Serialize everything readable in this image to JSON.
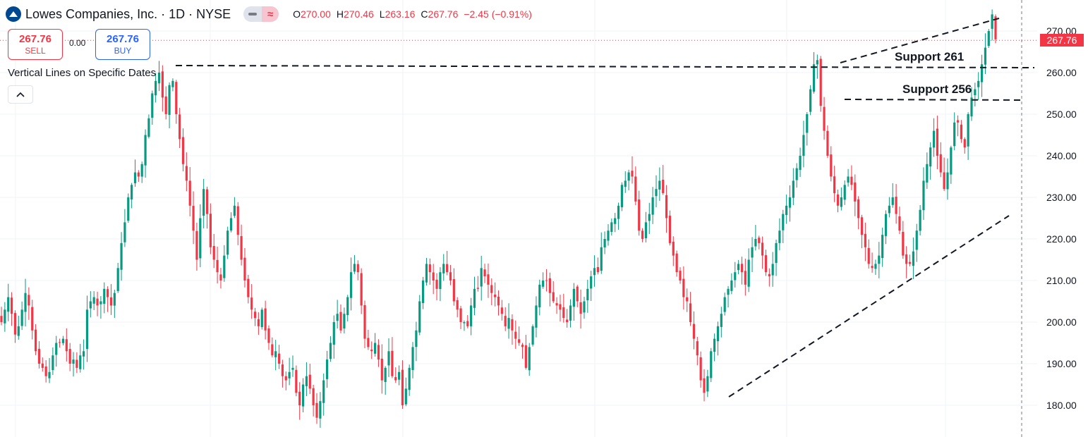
{
  "header": {
    "title": "Lowes Companies, Inc. · 1D · NYSE",
    "ohlc": [
      {
        "label": "O",
        "value": "270.00"
      },
      {
        "label": "H",
        "value": "270.46"
      },
      {
        "label": "L",
        "value": "263.16"
      },
      {
        "label": "C",
        "value": "267.76"
      }
    ],
    "change": "−2.45 (−0.91%)"
  },
  "trade": {
    "sell_price": "267.76",
    "sell_label": "SELL",
    "spread": "0.00",
    "buy_price": "267.76",
    "buy_label": "BUY"
  },
  "indicator_label": "Vertical Lines on Specific Dates",
  "annotations": {
    "support1": "Support 261",
    "support2": "Support 256"
  },
  "last_price_tag": "267.76",
  "colors": {
    "up": "#089981",
    "down": "#f23645",
    "accent": "#2962ff",
    "logo": "#004990"
  },
  "icons": [
    "lowes-logo-icon",
    "chevron-up-icon"
  ],
  "chart_data": {
    "type": "candlestick",
    "title": "Lowes Companies, Inc. · 1D · NYSE",
    "ylim": [
      176,
      276
    ],
    "yticks": [
      "270.00",
      "260.00",
      "250.00",
      "240.00",
      "230.00",
      "220.00",
      "210.00",
      "200.00",
      "190.00",
      "180.00"
    ],
    "last_price": 267.76,
    "grid": true,
    "closes": [
      200,
      203,
      206,
      202,
      197,
      199,
      203,
      207,
      204,
      198,
      193,
      190,
      189,
      187,
      188,
      192,
      195,
      195,
      196,
      193,
      190,
      191,
      189,
      192,
      193,
      203,
      205,
      206,
      204,
      205,
      208,
      206,
      204,
      207,
      213,
      219,
      224,
      230,
      233,
      236,
      235,
      238,
      245,
      249,
      255,
      258,
      260,
      254,
      250,
      257,
      258,
      250,
      244,
      238,
      234,
      228,
      222,
      215,
      225,
      232,
      226,
      218,
      215,
      212,
      210,
      216,
      222,
      225,
      228,
      221,
      215,
      210,
      206,
      203,
      201,
      199,
      203,
      198,
      195,
      192,
      193,
      190,
      187,
      186,
      188,
      189,
      183,
      180,
      185,
      187,
      184,
      180,
      177,
      181,
      186,
      191,
      195,
      200,
      202,
      198,
      202,
      206,
      212,
      214,
      212,
      204,
      196,
      194,
      193,
      195,
      191,
      186,
      189,
      193,
      187,
      186,
      188,
      180,
      184,
      189,
      194,
      198,
      205,
      210,
      214,
      212,
      210,
      208,
      212,
      214,
      212,
      210,
      205,
      203,
      200,
      200,
      199,
      204,
      208,
      208,
      213,
      211,
      209,
      207,
      206,
      204,
      202,
      199,
      201,
      198,
      196,
      195,
      194,
      189,
      194,
      199,
      204,
      209,
      210,
      210,
      207,
      205,
      204,
      203,
      201,
      200,
      204,
      208,
      205,
      202,
      205,
      208,
      211,
      213,
      212,
      218,
      220,
      222,
      224,
      225,
      228,
      233,
      234,
      236,
      235,
      229,
      222,
      220,
      224,
      226,
      230,
      232,
      234,
      231,
      225,
      219,
      216,
      212,
      210,
      206,
      205,
      200,
      196,
      192,
      186,
      183,
      187,
      193,
      196,
      199,
      202,
      206,
      208,
      210,
      212,
      214,
      212,
      209,
      215,
      218,
      220,
      219,
      216,
      212,
      211,
      214,
      219,
      222,
      226,
      228,
      230,
      234,
      237,
      240,
      245,
      250,
      256,
      262,
      263,
      252,
      246,
      240,
      235,
      231,
      228,
      230,
      233,
      235,
      233,
      229,
      225,
      221,
      218,
      214,
      213,
      214,
      216,
      221,
      226,
      228,
      230,
      226,
      222,
      216,
      214,
      214,
      217,
      222,
      227,
      234,
      238,
      242,
      246,
      240,
      236,
      232,
      236,
      242,
      248,
      248,
      244,
      242,
      250,
      254,
      256,
      258,
      262,
      266,
      270,
      274,
      268
    ]
  }
}
